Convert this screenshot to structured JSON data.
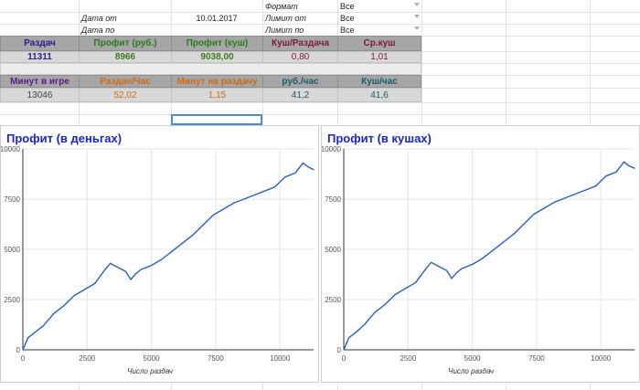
{
  "top_rows": {
    "row1": {
      "label_right": "Формат",
      "value_right": "Все"
    },
    "row2": {
      "label_left": "Дата от",
      "value_left": "10.01.2017",
      "label_right": "Лимит от",
      "value_right": "Все"
    },
    "row3": {
      "label_left": "Дата по",
      "label_right": "Лимит по",
      "value_right": "Все"
    }
  },
  "stats1": {
    "headers": [
      "Раздач",
      "Профит (руб.)",
      "Профит (куш)",
      "Куш/Раздача",
      "Ср.куш"
    ],
    "values": [
      "11311",
      "8966",
      "9038,00",
      "0,80",
      "1,01"
    ]
  },
  "stats2": {
    "headers": [
      "Минут в игре",
      "Раздач/Час",
      "Минут на раздачу",
      "руб./час",
      "Куш/час"
    ],
    "values": [
      "13046",
      "52,02",
      "1,15",
      "41,2",
      "41,6"
    ]
  },
  "colors": {
    "stats1_headers": [
      "#2a1a8a",
      "#2a7a1a",
      "#2a7a1a",
      "#7a1a3a",
      "#7a1a3a"
    ],
    "stats1_values": [
      "#2a1a8a",
      "#3a7a1a",
      "#3a7a1a",
      "#7a1a3a",
      "#7a1a3a"
    ],
    "stats2_headers": [
      "#5a1a8a",
      "#d06a10",
      "#d06a10",
      "#1a5a6a",
      "#1a5a6a"
    ],
    "stats2_values": [
      "#444444",
      "#d06a10",
      "#d06a10",
      "#1a5a6a",
      "#1a5a6a"
    ],
    "chart_title": "#1a25d0",
    "line": "#2a5fc4"
  },
  "chart_data": [
    {
      "type": "line",
      "title": "Профит (в деньгах)",
      "xlabel": "Число раздач",
      "ylabel": "",
      "xlim": [
        0,
        11311
      ],
      "ylim": [
        0,
        10000
      ],
      "x_ticks": [
        0,
        2500,
        5000,
        7500,
        10000
      ],
      "y_ticks": [
        0,
        2500,
        5000,
        7500,
        10000
      ],
      "grid": true,
      "x": [
        0,
        200,
        500,
        800,
        1200,
        1600,
        2000,
        2400,
        2800,
        3200,
        3400,
        3700,
        4000,
        4200,
        4400,
        4600,
        5000,
        5400,
        5800,
        6200,
        6600,
        7000,
        7400,
        7800,
        8200,
        8600,
        9000,
        9400,
        9800,
        10200,
        10600,
        10900,
        11100,
        11311
      ],
      "values": [
        0,
        600,
        900,
        1200,
        1800,
        2200,
        2700,
        3000,
        3300,
        4000,
        4300,
        4100,
        3900,
        3500,
        3800,
        4000,
        4200,
        4500,
        4900,
        5300,
        5700,
        6200,
        6700,
        7000,
        7300,
        7500,
        7700,
        7900,
        8100,
        8600,
        8800,
        9300,
        9100,
        8966
      ]
    },
    {
      "type": "line",
      "title": "Профит (в кушах)",
      "xlabel": "Число раздач",
      "ylabel": "",
      "xlim": [
        0,
        11311
      ],
      "ylim": [
        0,
        10000
      ],
      "x_ticks": [
        0,
        2500,
        5000,
        7500,
        10000
      ],
      "y_ticks": [
        0,
        2500,
        5000,
        7500,
        10000
      ],
      "grid": true,
      "x": [
        0,
        200,
        500,
        800,
        1200,
        1600,
        2000,
        2400,
        2800,
        3200,
        3400,
        3700,
        4000,
        4200,
        4400,
        4600,
        5000,
        5400,
        5800,
        6200,
        6600,
        7000,
        7400,
        7800,
        8200,
        8600,
        9000,
        9400,
        9800,
        10200,
        10600,
        10900,
        11100,
        11311
      ],
      "values": [
        0,
        600,
        900,
        1250,
        1850,
        2250,
        2750,
        3050,
        3350,
        4050,
        4350,
        4150,
        3950,
        3550,
        3850,
        4050,
        4250,
        4550,
        4950,
        5350,
        5750,
        6250,
        6750,
        7050,
        7350,
        7550,
        7750,
        7950,
        8150,
        8650,
        8850,
        9350,
        9150,
        9038
      ]
    }
  ]
}
